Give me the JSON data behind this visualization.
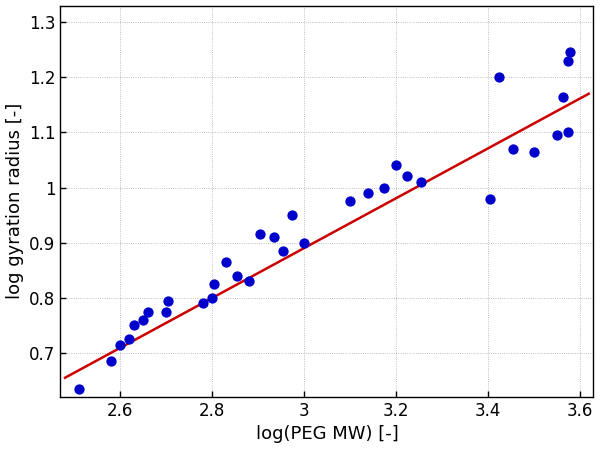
{
  "x_data": [
    2.51,
    2.58,
    2.6,
    2.62,
    2.63,
    2.65,
    2.66,
    2.7,
    2.705,
    2.78,
    2.8,
    2.805,
    2.83,
    2.855,
    2.88,
    2.905,
    2.935,
    2.955,
    2.975,
    3.0,
    3.1,
    3.14,
    3.175,
    3.2,
    3.225,
    3.255,
    3.405,
    3.425,
    3.455,
    3.5,
    3.55,
    3.565,
    3.575,
    3.575,
    3.58
  ],
  "y_data": [
    0.635,
    0.685,
    0.715,
    0.725,
    0.75,
    0.76,
    0.775,
    0.775,
    0.795,
    0.79,
    0.8,
    0.825,
    0.865,
    0.84,
    0.83,
    0.915,
    0.91,
    0.885,
    0.95,
    0.9,
    0.975,
    0.99,
    1.0,
    1.04,
    1.02,
    1.01,
    0.98,
    1.2,
    1.07,
    1.065,
    1.095,
    1.165,
    1.1,
    1.23,
    1.245
  ],
  "fit_x": [
    2.48,
    3.62
  ],
  "fit_y": [
    0.655,
    1.17
  ],
  "dot_color": "#0000cc",
  "line_color": "#cc0000",
  "xlim": [
    2.47,
    3.63
  ],
  "ylim": [
    0.62,
    1.33
  ],
  "xticks": [
    2.6,
    2.8,
    3.0,
    3.2,
    3.4,
    3.6
  ],
  "yticks": [
    0.7,
    0.8,
    0.9,
    1.0,
    1.1,
    1.2,
    1.3
  ],
  "xlabel": "log(PEG MW) [-]",
  "ylabel": "log gyration radius [-]",
  "grid_color": "#888888",
  "bg_color": "#ffffff",
  "marker_size": 55,
  "line_width": 1.8,
  "font_size_labels": 13,
  "font_size_ticks": 12
}
